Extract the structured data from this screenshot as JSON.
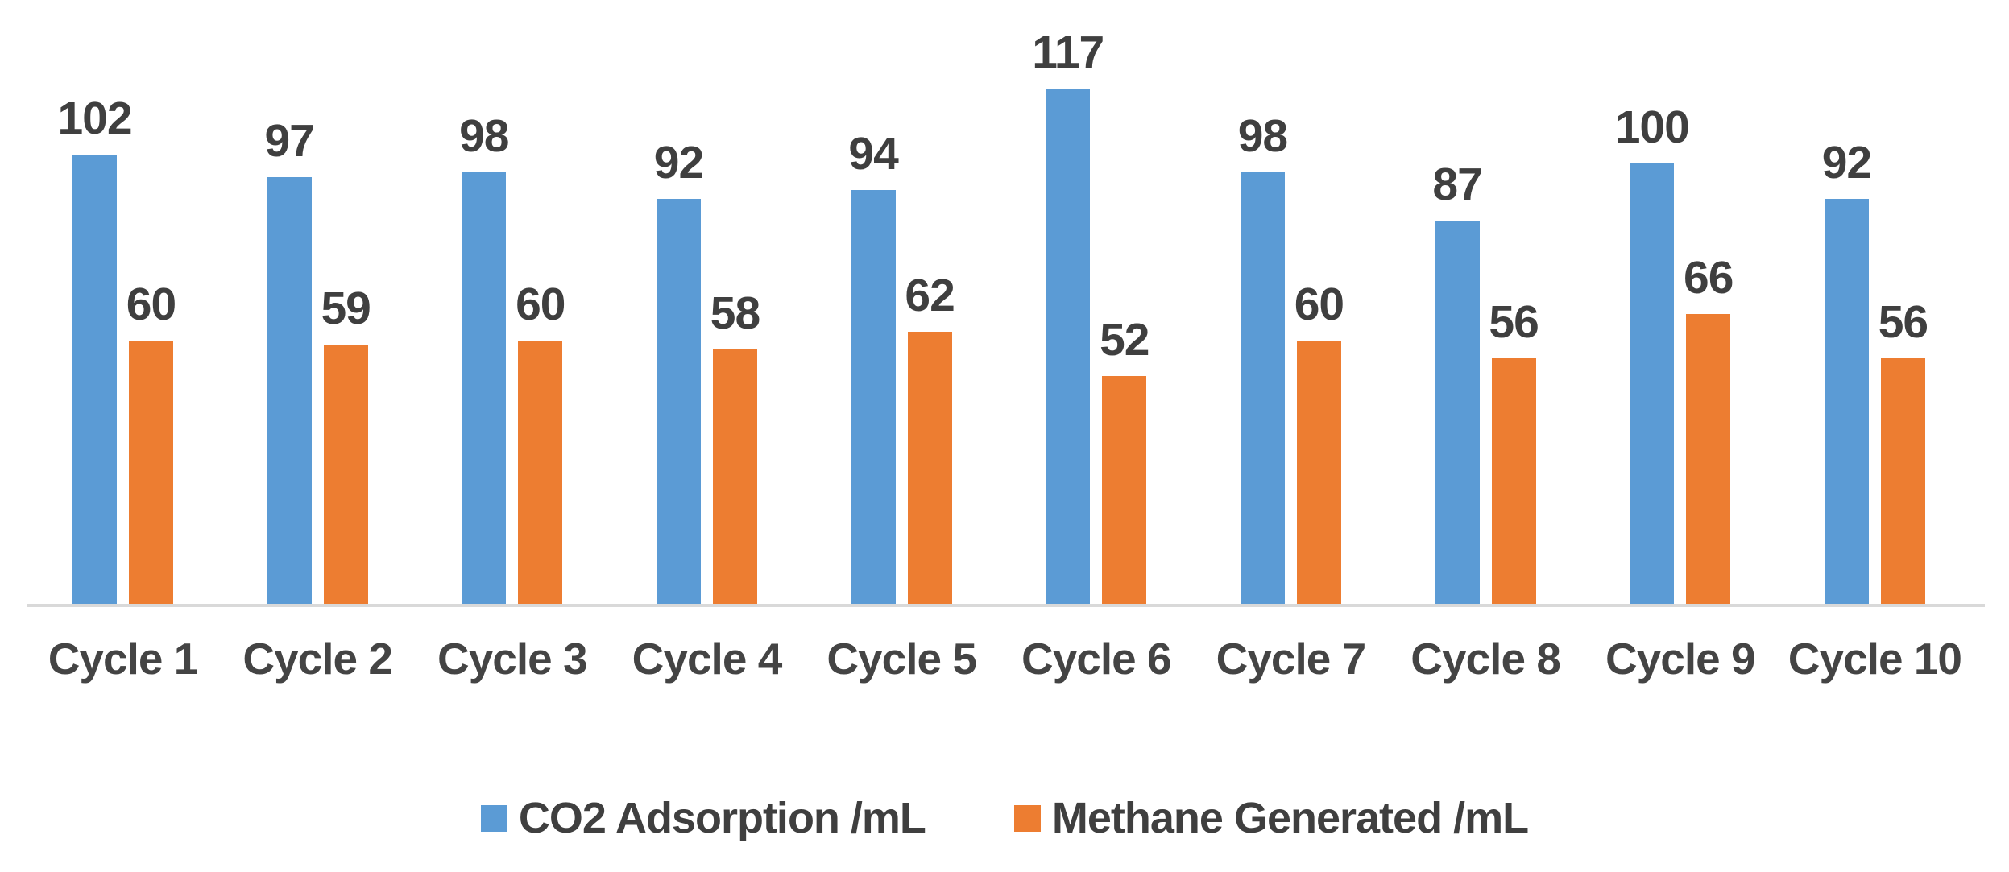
{
  "chart_data": {
    "type": "bar",
    "categories": [
      "Cycle 1",
      "Cycle 2",
      "Cycle 3",
      "Cycle 4",
      "Cycle 5",
      "Cycle 6",
      "Cycle 7",
      "Cycle 8",
      "Cycle 9",
      "Cycle 10"
    ],
    "series": [
      {
        "name": "CO2 Adsorption /mL",
        "color": "#5B9BD5",
        "values": [
          102,
          97,
          98,
          92,
          94,
          117,
          98,
          87,
          100,
          92
        ]
      },
      {
        "name": "Methane Generated /mL",
        "color": "#ED7D31",
        "values": [
          60,
          59,
          60,
          58,
          62,
          52,
          60,
          56,
          66,
          56
        ]
      }
    ],
    "title": "",
    "xlabel": "",
    "ylabel": "",
    "ylim": [
      0,
      137
    ],
    "grid": false,
    "legend_position": "bottom",
    "data_labels": true,
    "axis_line_color": "#D9D9D9",
    "data_label_color": "#3F3F3F",
    "category_label_color": "#444444",
    "background_color": "#FFFFFF"
  }
}
